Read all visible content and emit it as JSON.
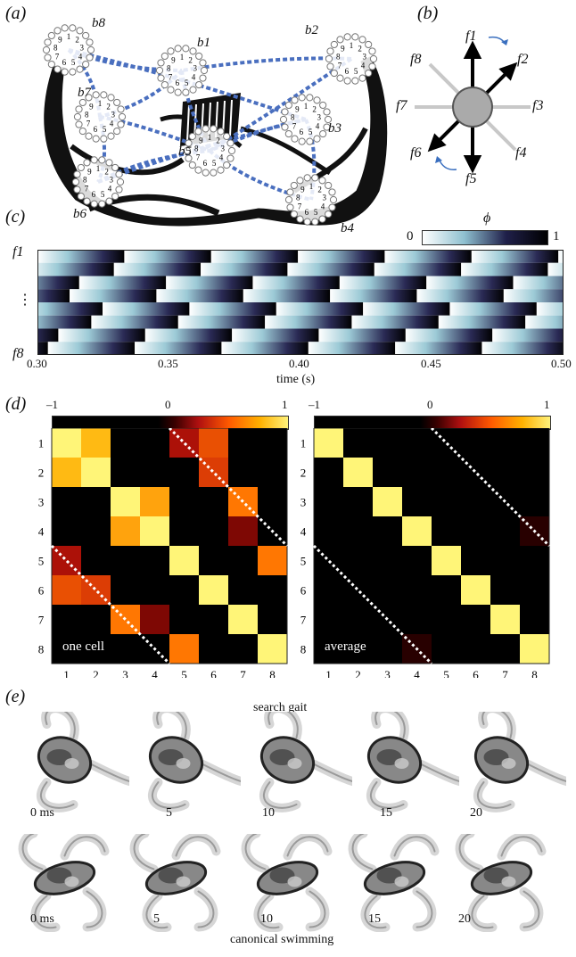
{
  "panels": {
    "a": {
      "label": "(a)",
      "basal_bodies": [
        {
          "id": "b1",
          "label": "b1"
        },
        {
          "id": "b2",
          "label": "b2"
        },
        {
          "id": "b3",
          "label": "b3"
        },
        {
          "id": "b4",
          "label": "b4"
        },
        {
          "id": "b5",
          "label": "b5"
        },
        {
          "id": "b6",
          "label": "b6"
        },
        {
          "id": "b7",
          "label": "b7"
        },
        {
          "id": "b8",
          "label": "b8"
        }
      ],
      "ring_digits": [
        "1",
        "2",
        "3",
        "4",
        "5",
        "6",
        "7",
        "8",
        "9"
      ],
      "line_color": "#4a6fbf"
    },
    "b": {
      "label": "(b)",
      "flagella": [
        "f1",
        "f2",
        "f3",
        "f4",
        "f5",
        "f6",
        "f7",
        "f8"
      ]
    },
    "c": {
      "label": "(c)",
      "colorbar_label": "ϕ",
      "colorbar_min": "0",
      "colorbar_max": "1",
      "y_top": "f1",
      "y_mid": "⋮",
      "y_bottom": "f8",
      "xlabel": "time (s)",
      "xticks": [
        "0.30",
        "0.35",
        "0.40",
        "0.45",
        "0.50"
      ],
      "x_range": [
        0.3,
        0.5
      ],
      "period_s": 0.033,
      "phase_offsets": [
        0.0,
        0.12,
        0.52,
        0.63,
        0.25,
        0.38,
        0.76,
        0.88
      ]
    },
    "d": {
      "label": "(d)",
      "colorbar_ticks": [
        "–1",
        "0",
        "1"
      ],
      "left_caption": "one cell",
      "right_caption": "average",
      "axis_ticks": [
        "1",
        "2",
        "3",
        "4",
        "5",
        "6",
        "7",
        "8"
      ]
    },
    "e": {
      "label": "(e)",
      "row1_title": "search gait",
      "row1_times": [
        "0 ms",
        "5",
        "10",
        "15",
        "20"
      ],
      "row2_times": [
        "0 ms",
        "5",
        "10",
        "15",
        "20"
      ],
      "row2_title": "canonical swimming",
      "marker_color": "#c0392b"
    }
  },
  "chart_data": [
    {
      "type": "heatmap",
      "title": "one cell",
      "x": [
        1,
        2,
        3,
        4,
        5,
        6,
        7,
        8
      ],
      "y": [
        1,
        2,
        3,
        4,
        5,
        6,
        7,
        8
      ],
      "zlim": [
        -1,
        1
      ],
      "values": [
        [
          1.0,
          0.85,
          -0.8,
          -0.9,
          0.4,
          0.6,
          -0.85,
          -0.7
        ],
        [
          0.85,
          1.0,
          -0.7,
          -0.85,
          -0.6,
          0.55,
          -0.3,
          -0.9
        ],
        [
          -0.8,
          -0.7,
          1.0,
          0.8,
          -0.9,
          -0.8,
          0.7,
          -0.95
        ],
        [
          -0.9,
          -0.85,
          0.8,
          1.0,
          -0.85,
          -0.9,
          0.3,
          -0.4
        ],
        [
          0.4,
          -0.6,
          -0.9,
          -0.85,
          1.0,
          -0.6,
          -0.9,
          0.7
        ],
        [
          0.6,
          0.55,
          -0.8,
          -0.9,
          -0.6,
          1.0,
          -0.6,
          -0.85
        ],
        [
          -0.85,
          -0.3,
          0.7,
          0.3,
          -0.9,
          -0.6,
          1.0,
          -0.8
        ],
        [
          -0.7,
          -0.9,
          -0.95,
          -0.4,
          0.7,
          -0.85,
          -0.8,
          1.0
        ]
      ]
    },
    {
      "type": "heatmap",
      "title": "average",
      "x": [
        1,
        2,
        3,
        4,
        5,
        6,
        7,
        8
      ],
      "y": [
        1,
        2,
        3,
        4,
        5,
        6,
        7,
        8
      ],
      "zlim": [
        -1,
        1
      ],
      "values": [
        [
          1.0,
          -0.3,
          -0.8,
          -0.85,
          -0.4,
          -0.6,
          -0.85,
          -0.8
        ],
        [
          -0.3,
          1.0,
          -0.6,
          -0.8,
          -0.5,
          -0.1,
          -0.7,
          -0.85
        ],
        [
          -0.8,
          -0.6,
          1.0,
          -0.5,
          -0.85,
          -0.8,
          -0.2,
          -0.7
        ],
        [
          -0.85,
          -0.8,
          -0.5,
          1.0,
          -0.8,
          -0.8,
          -0.6,
          0.1
        ],
        [
          -0.4,
          -0.5,
          -0.85,
          -0.8,
          1.0,
          -0.6,
          -0.85,
          -0.05
        ],
        [
          -0.6,
          -0.1,
          -0.8,
          -0.8,
          -0.6,
          1.0,
          -0.3,
          -0.85
        ],
        [
          -0.85,
          -0.7,
          -0.2,
          -0.6,
          -0.85,
          -0.3,
          1.0,
          -0.8
        ],
        [
          -0.8,
          -0.85,
          -0.7,
          0.1,
          -0.05,
          -0.85,
          -0.8,
          1.0
        ]
      ]
    }
  ]
}
